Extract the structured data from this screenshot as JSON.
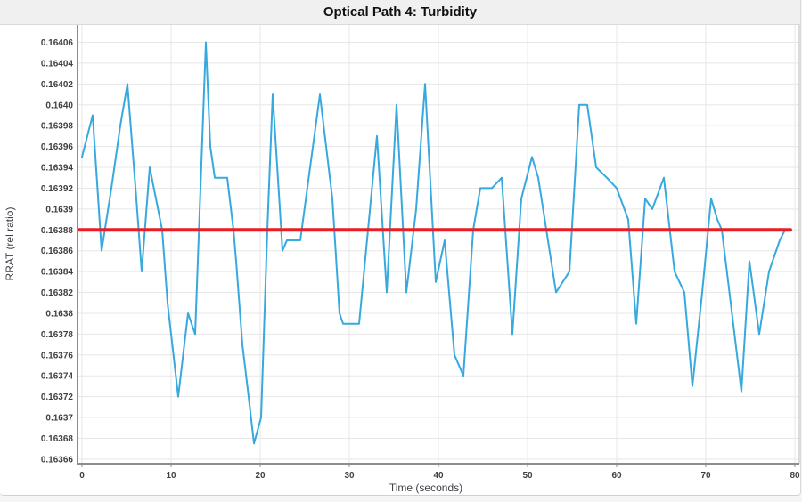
{
  "window": {
    "title": "Optical Path 4: Turbidity"
  },
  "chart_data": {
    "type": "line",
    "title": "Optical Path 4: Turbidity",
    "xlabel": "Time (seconds)",
    "ylabel": "RRAT (rel ratio)",
    "xlim": [
      -0.5,
      80.5
    ],
    "ylim": [
      0.163655,
      0.164078
    ],
    "grid": true,
    "legend": "none",
    "x_ticks": [
      0,
      10,
      20,
      30,
      40,
      50,
      60,
      70,
      80
    ],
    "y_ticks": [
      0.16366,
      0.16368,
      0.1637,
      0.16372,
      0.16374,
      0.16376,
      0.16378,
      0.1638,
      0.16382,
      0.16384,
      0.16386,
      0.16388,
      0.1639,
      0.16392,
      0.16394,
      0.16396,
      0.16398,
      0.164,
      0.16402,
      0.16404,
      0.16406
    ],
    "y_tick_labels": [
      "0.16366",
      "0.16368",
      "0.1637",
      "0.16372",
      "0.16374",
      "0.16376",
      "0.16378",
      "0.1638",
      "0.16382",
      "0.16384",
      "0.16386",
      "0.16388",
      "0.1639",
      "0.16392",
      "0.16394",
      "0.16396",
      "0.16398",
      "0.1640",
      "0.16402",
      "0.16404",
      "0.16406"
    ],
    "mean_value": 0.16388,
    "series": [
      {
        "name": "turbidity-signal",
        "color": "#38a9de",
        "width": 2,
        "points": [
          [
            0.0,
            0.16395
          ],
          [
            1.2,
            0.16399
          ],
          [
            2.2,
            0.16386
          ],
          [
            3.3,
            0.16392
          ],
          [
            4.3,
            0.16398
          ],
          [
            5.1,
            0.16402
          ],
          [
            6.1,
            0.16391
          ],
          [
            6.7,
            0.16384
          ],
          [
            7.6,
            0.16394
          ],
          [
            9.0,
            0.16388
          ],
          [
            9.6,
            0.16381
          ],
          [
            10.8,
            0.16372
          ],
          [
            11.9,
            0.1638
          ],
          [
            12.7,
            0.16378
          ],
          [
            13.9,
            0.16406
          ],
          [
            14.4,
            0.16396
          ],
          [
            14.9,
            0.16393
          ],
          [
            16.3,
            0.16393
          ],
          [
            17.0,
            0.16388
          ],
          [
            17.3,
            0.16385
          ],
          [
            18.0,
            0.16377
          ],
          [
            18.7,
            0.16372
          ],
          [
            19.3,
            0.163675
          ],
          [
            20.1,
            0.1637
          ],
          [
            20.8,
            0.16388
          ],
          [
            21.4,
            0.16401
          ],
          [
            22.5,
            0.16386
          ],
          [
            23.0,
            0.16387
          ],
          [
            24.5,
            0.16387
          ],
          [
            26.7,
            0.16401
          ],
          [
            28.1,
            0.16391
          ],
          [
            28.9,
            0.1638
          ],
          [
            29.3,
            0.16379
          ],
          [
            31.1,
            0.16379
          ],
          [
            33.1,
            0.16397
          ],
          [
            34.2,
            0.16382
          ],
          [
            35.3,
            0.164
          ],
          [
            36.4,
            0.16382
          ],
          [
            37.5,
            0.1639
          ],
          [
            38.5,
            0.16402
          ],
          [
            39.7,
            0.16383
          ],
          [
            40.7,
            0.16387
          ],
          [
            41.8,
            0.16376
          ],
          [
            42.8,
            0.16374
          ],
          [
            43.9,
            0.16388
          ],
          [
            44.7,
            0.16392
          ],
          [
            46.0,
            0.16392
          ],
          [
            47.1,
            0.16393
          ],
          [
            48.3,
            0.16378
          ],
          [
            49.3,
            0.16391
          ],
          [
            50.5,
            0.16395
          ],
          [
            51.2,
            0.16393
          ],
          [
            53.2,
            0.16382
          ],
          [
            54.7,
            0.16384
          ],
          [
            55.8,
            0.164
          ],
          [
            56.7,
            0.164
          ],
          [
            57.7,
            0.16394
          ],
          [
            58.9,
            0.16393
          ],
          [
            60.0,
            0.16392
          ],
          [
            61.3,
            0.16389
          ],
          [
            62.2,
            0.16379
          ],
          [
            63.2,
            0.16391
          ],
          [
            64.0,
            0.1639
          ],
          [
            65.3,
            0.16393
          ],
          [
            66.5,
            0.16384
          ],
          [
            67.6,
            0.16382
          ],
          [
            68.5,
            0.16373
          ],
          [
            69.6,
            0.16382
          ],
          [
            70.6,
            0.16391
          ],
          [
            71.3,
            0.16389
          ],
          [
            71.8,
            0.16388
          ],
          [
            72.8,
            0.16381
          ],
          [
            74.0,
            0.163725
          ],
          [
            74.9,
            0.16385
          ],
          [
            76.0,
            0.16378
          ],
          [
            77.1,
            0.16384
          ],
          [
            78.3,
            0.16387
          ],
          [
            78.9,
            0.16388
          ]
        ]
      },
      {
        "name": "mean-line",
        "color": "#e91d22",
        "width": 4,
        "points": [
          [
            -0.3,
            0.16388
          ],
          [
            79.5,
            0.16388
          ]
        ]
      }
    ],
    "colors": {
      "plot_background": "#ffffff",
      "title_bar_background": "#f0f0f0",
      "gridline": "#e7e7e7",
      "axis_line": "#8c8c8c",
      "right_border": "#b8b8b8",
      "tick_label": "#3f3f3f",
      "axis_title": "#3d4148"
    }
  }
}
